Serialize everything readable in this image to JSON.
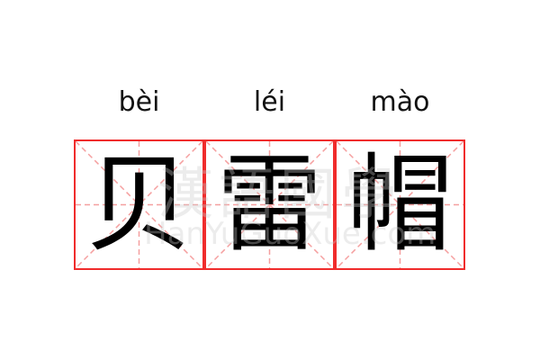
{
  "word": {
    "chars": [
      {
        "hanzi": "贝",
        "pinyin": "bèi"
      },
      {
        "hanzi": "雷",
        "pinyin": "léi"
      },
      {
        "hanzi": "帽",
        "pinyin": "mào"
      }
    ]
  },
  "watermark": {
    "chinese": "漢語國學",
    "site": "HanYuGuoXue.com"
  },
  "colors": {
    "border": "#f02c2c",
    "guide": "#f5a0a0",
    "text": "#000000"
  }
}
